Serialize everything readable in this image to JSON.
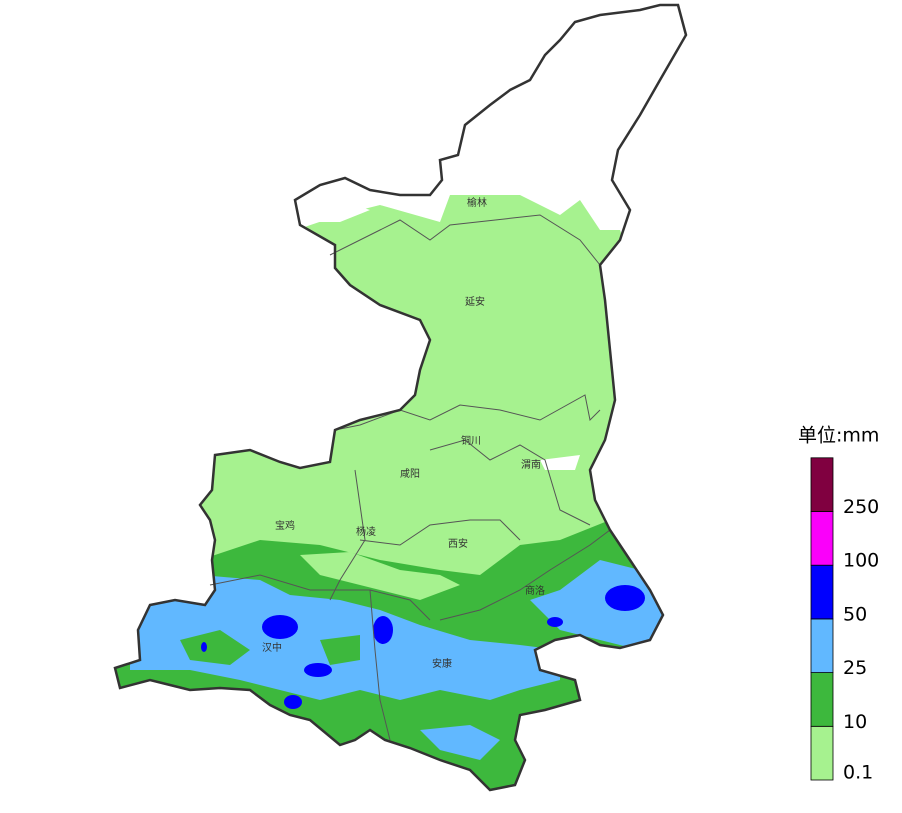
{
  "legend": {
    "title": "单位:mm",
    "thresholds": [
      0.1,
      10,
      25,
      50,
      100,
      250
    ],
    "colors": [
      "#a6f28f",
      "#3db83d",
      "#61b8ff",
      "#0000fe",
      "#fa00fa",
      "#800040"
    ]
  },
  "cities": [
    "榆林",
    "延安",
    "铜川",
    "渭南",
    "咸阳",
    "宝鸡",
    "杨凌",
    "西安",
    "商洛",
    "汉中",
    "安康"
  ]
}
